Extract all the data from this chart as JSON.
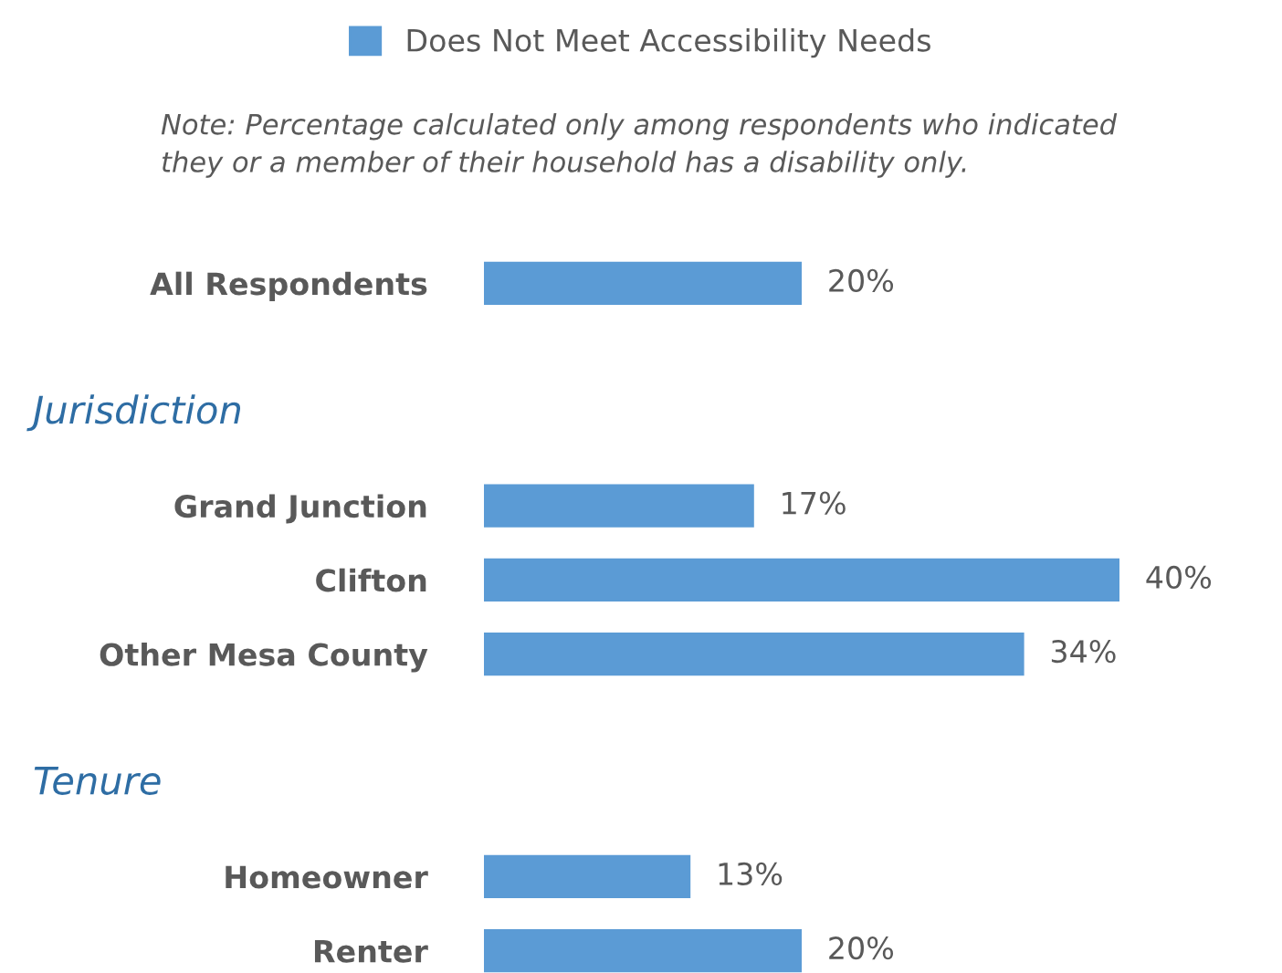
{
  "chart_data": {
    "type": "bar",
    "orientation": "horizontal",
    "categories": [
      "All Respondents",
      null,
      null,
      "Grand Junction",
      "Clifton",
      "Other Mesa County",
      null,
      null,
      "Homeowner",
      "Renter"
    ],
    "series": [
      {
        "name": "Does Not Meet Accessibility Needs",
        "color": "#5b9bd5",
        "values": [
          20,
          null,
          null,
          17,
          40,
          34,
          null,
          null,
          13,
          20
        ],
        "value_labels": [
          "20%",
          null,
          null,
          "17%",
          "40%",
          "34%",
          null,
          null,
          "13%",
          "20%"
        ]
      }
    ],
    "legend": "top",
    "annotations": [
      "Note: Percentage calculated only among respondents who indicated\nthey or a member of their household has a disability only.",
      "Jurisdiction",
      "Tenure"
    ]
  }
}
